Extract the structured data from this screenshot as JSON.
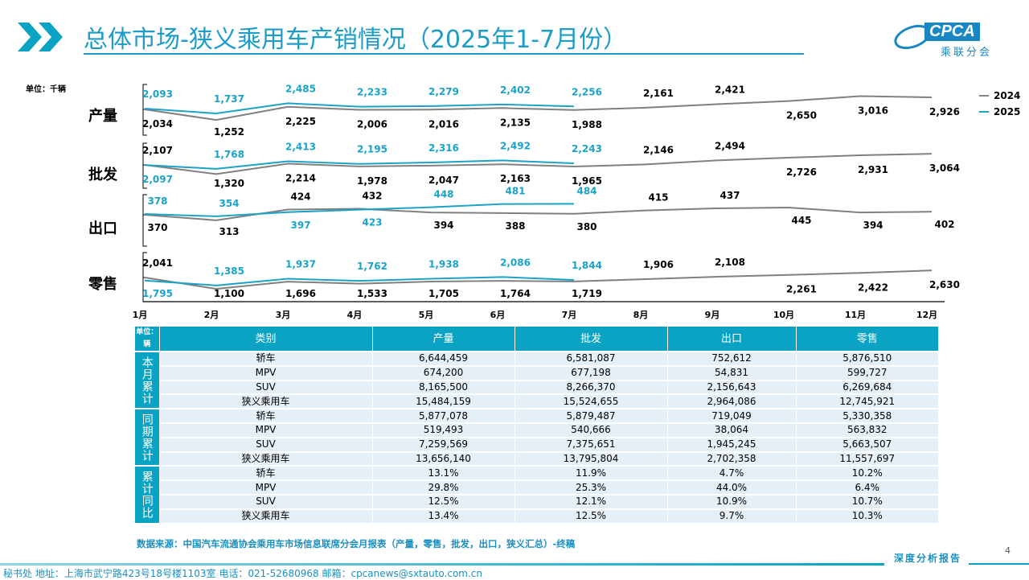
{
  "header": {
    "title": "总体市场-狭义乘用车产销情况（2025年1-7月份）",
    "logo_text": "CPCA",
    "logo_sub": "乘联分会"
  },
  "chart_data": {
    "type": "line",
    "unit": "单位：千辆",
    "categories": [
      "1月",
      "2月",
      "3月",
      "4月",
      "5月",
      "6月",
      "7月",
      "8月",
      "9月",
      "10月",
      "11月",
      "12月"
    ],
    "legend": [
      "2024",
      "2025"
    ],
    "colors": {
      "2024": "#808080",
      "2025": "#1aa3c8"
    },
    "panels": [
      {
        "name": "产量",
        "series": [
          {
            "name": "2024",
            "values": [
              2034,
              1252,
              2225,
              2006,
              2016,
              2135,
              1988,
              2161,
              2421,
              2650,
              3016,
              2926
            ]
          },
          {
            "name": "2025",
            "values": [
              2093,
              1737,
              2485,
              2233,
              2279,
              2402,
              2256
            ]
          }
        ]
      },
      {
        "name": "批发",
        "series": [
          {
            "name": "2024",
            "values": [
              2107,
              1320,
              2214,
              1978,
              2047,
              2163,
              1965,
              2146,
              2494,
              2726,
              2931,
              3064
            ]
          },
          {
            "name": "2025",
            "values": [
              2097,
              1768,
              2413,
              2195,
              2316,
              2492,
              2243
            ]
          }
        ]
      },
      {
        "name": "出口",
        "series": [
          {
            "name": "2024",
            "values": [
              370,
              313,
              424,
              432,
              394,
              388,
              380,
              415,
              437,
              445,
              394,
              402
            ]
          },
          {
            "name": "2025",
            "values": [
              378,
              354,
              397,
              423,
              448,
              481,
              484
            ]
          }
        ]
      },
      {
        "name": "零售",
        "series": [
          {
            "name": "2024",
            "values": [
              2041,
              1100,
              1696,
              1533,
              1705,
              1764,
              1719,
              1906,
              2108,
              2261,
              2422,
              2630
            ]
          },
          {
            "name": "2025",
            "values": [
              1795,
              1385,
              1937,
              1762,
              1938,
              2086,
              1844
            ]
          }
        ]
      }
    ]
  },
  "table": {
    "unit": "单位：辆",
    "headers": [
      "类别",
      "产量",
      "批发",
      "出口",
      "零售"
    ],
    "groups": [
      {
        "label": "本月累计",
        "rows": [
          [
            "轿车",
            "6,644,459",
            "6,581,087",
            "752,612",
            "5,876,510"
          ],
          [
            "MPV",
            "674,200",
            "677,198",
            "54,831",
            "599,727"
          ],
          [
            "SUV",
            "8,165,500",
            "8,266,370",
            "2,156,643",
            "6,269,684"
          ],
          [
            "狭义乘用车",
            "15,484,159",
            "15,524,655",
            "2,964,086",
            "12,745,921"
          ]
        ]
      },
      {
        "label": "同期累计",
        "rows": [
          [
            "轿车",
            "5,877,078",
            "5,879,487",
            "719,049",
            "5,330,358"
          ],
          [
            "MPV",
            "519,493",
            "540,666",
            "38,064",
            "563,832"
          ],
          [
            "SUV",
            "7,259,569",
            "7,375,651",
            "1,945,245",
            "5,663,507"
          ],
          [
            "狭义乘用车",
            "13,656,140",
            "13,795,804",
            "2,702,358",
            "11,557,697"
          ]
        ]
      },
      {
        "label": "累计同比",
        "rows": [
          [
            "轿车",
            "13.1%",
            "11.9%",
            "4.7%",
            "10.2%"
          ],
          [
            "MPV",
            "29.8%",
            "25.3%",
            "44.0%",
            "6.4%"
          ],
          [
            "SUV",
            "12.5%",
            "12.1%",
            "10.9%",
            "10.7%"
          ],
          [
            "狭义乘用车",
            "13.4%",
            "12.5%",
            "9.7%",
            "10.3%"
          ]
        ]
      }
    ]
  },
  "source": "数据来源：中国汽车流通协会乘用车市场信息联席分会月报表（产量，零售，批发，出口，狭义汇总）-终稿",
  "footer": {
    "address": "秘书处   地址：上海市武宁路423号18号楼1103室  电话：021-52680968   邮箱：cpcanews@sxtauto.com.cn",
    "report": "深度分析报告",
    "page": "4"
  }
}
